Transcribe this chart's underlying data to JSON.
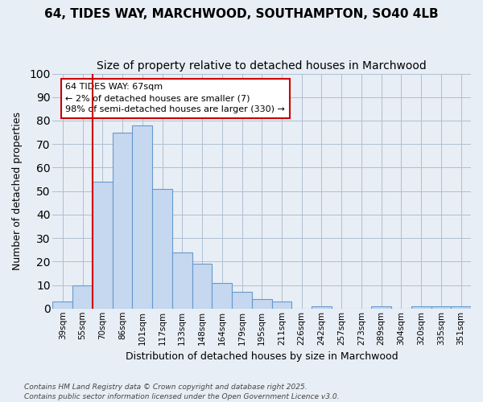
{
  "title1": "64, TIDES WAY, MARCHWOOD, SOUTHAMPTON, SO40 4LB",
  "title2": "Size of property relative to detached houses in Marchwood",
  "xlabel": "Distribution of detached houses by size in Marchwood",
  "ylabel": "Number of detached properties",
  "categories": [
    "39sqm",
    "55sqm",
    "70sqm",
    "86sqm",
    "101sqm",
    "117sqm",
    "133sqm",
    "148sqm",
    "164sqm",
    "179sqm",
    "195sqm",
    "211sqm",
    "226sqm",
    "242sqm",
    "257sqm",
    "273sqm",
    "289sqm",
    "304sqm",
    "320sqm",
    "335sqm",
    "351sqm"
  ],
  "values": [
    3,
    10,
    54,
    75,
    78,
    51,
    24,
    19,
    11,
    7,
    4,
    3,
    0,
    1,
    0,
    0,
    1,
    0,
    1,
    1,
    1
  ],
  "bar_color": "#c5d8f0",
  "bar_edge_color": "#6699cc",
  "background_color": "#e8eef5",
  "plot_bg_color": "#e8eef5",
  "grid_color": "#b0bfd0",
  "red_line_x": 1.5,
  "red_line_color": "#cc0000",
  "annotation_title": "64 TIDES WAY: 67sqm",
  "annotation_line2": "← 2% of detached houses are smaller (7)",
  "annotation_line3": "98% of semi-detached houses are larger (330) →",
  "annotation_box_color": "#ffffff",
  "annotation_box_edge": "#cc0000",
  "footnote1": "Contains HM Land Registry data © Crown copyright and database right 2025.",
  "footnote2": "Contains public sector information licensed under the Open Government Licence v3.0.",
  "ylim": [
    0,
    100
  ],
  "yticks": [
    0,
    10,
    20,
    30,
    40,
    50,
    60,
    70,
    80,
    90,
    100
  ],
  "title1_fontsize": 11,
  "title2_fontsize": 10
}
